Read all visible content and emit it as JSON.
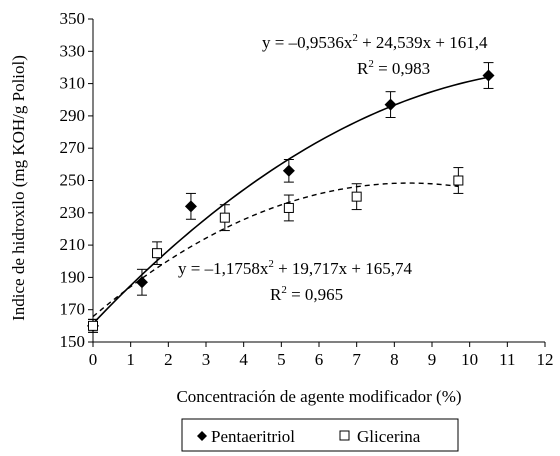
{
  "chart_data": {
    "type": "scatter",
    "title": "",
    "xlabel": "Concentración de agente modificador (%)",
    "ylabel": "Indice de hidroxilo (mg KOH/g Poliol)",
    "xlim": [
      0,
      12
    ],
    "ylim": [
      150,
      350
    ],
    "xticks": [
      "0",
      "1",
      "2",
      "3",
      "4",
      "5",
      "6",
      "7",
      "8",
      "9",
      "10",
      "11",
      "12"
    ],
    "yticks": [
      "150",
      "170",
      "190",
      "210",
      "230",
      "250",
      "270",
      "290",
      "310",
      "330",
      "350"
    ],
    "grid": false,
    "legend_position": "bottom",
    "series": [
      {
        "name": "Pentaeritriol",
        "marker": "diamond-filled",
        "line_style": "solid",
        "x": [
          0,
          1.3,
          2.6,
          5.2,
          7.9,
          10.5
        ],
        "y": [
          160,
          187,
          234,
          256,
          297,
          315
        ],
        "error": [
          4,
          8,
          8,
          7,
          8,
          8
        ],
        "trend": {
          "a": -0.9536,
          "b": 24.539,
          "c": 161.4
        }
      },
      {
        "name": "Glicerina",
        "marker": "square-open",
        "line_style": "dashed",
        "x": [
          0,
          1.7,
          3.5,
          5.2,
          7.0,
          9.7
        ],
        "y": [
          160,
          205,
          227,
          233,
          240,
          250
        ],
        "error": [
          4,
          7,
          8,
          8,
          8,
          8
        ],
        "trend": {
          "a": -1.1758,
          "b": 19.717,
          "c": 165.74
        }
      }
    ],
    "annotations": {
      "pentaeritriol_eq": {
        "prefix": "y = –0,9536x",
        "sup": "2",
        "suffix": " + 24,539x + 161,4"
      },
      "pentaeritriol_r2": {
        "prefix": "R",
        "sup": "2",
        "suffix": " = 0,983"
      },
      "glicerina_eq": {
        "prefix": "y = –1,1758x",
        "sup": "2",
        "suffix": " + 19,717x + 165,74"
      },
      "glicerina_r2": {
        "prefix": "R",
        "sup": "2",
        "suffix": " = 0,965"
      }
    },
    "colors": {
      "axis": "#000000",
      "marker": "#000000",
      "background": "#ffffff"
    }
  }
}
